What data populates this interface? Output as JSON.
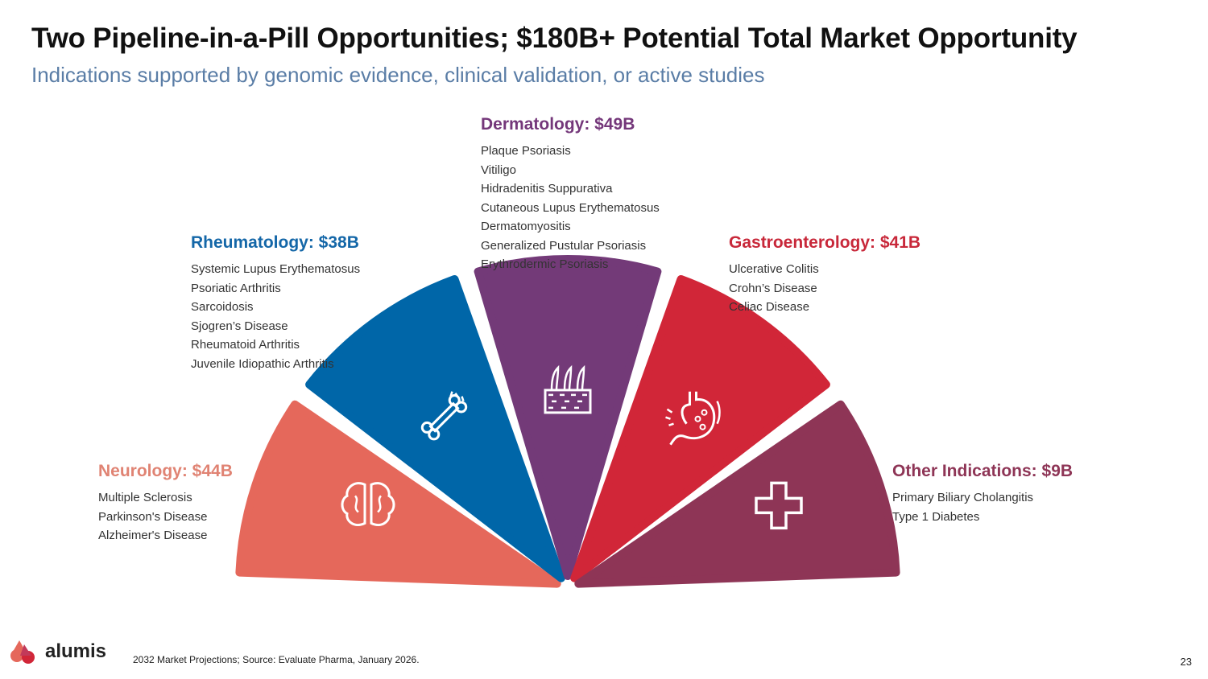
{
  "slide": {
    "title": "Two Pipeline-in-a-Pill Opportunities; $180B+ Potential Total Market Opportunity",
    "subtitle": "Indications supported by genomic evidence, clinical validation, or active studies",
    "footnote": "2032 Market Projections; Source: Evaluate Pharma, January 2026.",
    "page_number": "23",
    "logo_text": "alumis"
  },
  "chart_data": {
    "type": "pie",
    "title": "Two Pipeline-in-a-Pill Opportunities; $180B+ Potential Total Market Opportunity",
    "unit": "$B (2032 market projections)",
    "categories": [
      "Neurology",
      "Rheumatology",
      "Dermatology",
      "Gastroenterology",
      "Other Indications"
    ],
    "values": [
      44,
      38,
      49,
      41,
      9
    ],
    "segments": [
      {
        "name": "Neurology",
        "label": "Neurology: $44B",
        "value": 44,
        "color": "#e5685b",
        "icon": "brain-icon",
        "indications": [
          "Multiple Sclerosis",
          "Parkinson's Disease",
          "Alzheimer's Disease"
        ]
      },
      {
        "name": "Rheumatology",
        "label": "Rheumatology: $38B",
        "value": 38,
        "color": "#0066a8",
        "icon": "bone-icon",
        "indications": [
          "Systemic Lupus Erythematosus",
          "Psoriatic Arthritis",
          "Sarcoidosis",
          "Sjogren’s Disease",
          "Rheumatoid Arthritis",
          "Juvenile Idiopathic Arthritis"
        ]
      },
      {
        "name": "Dermatology",
        "label": "Dermatology: $49B",
        "value": 49,
        "color": "#733a78",
        "icon": "skin-icon",
        "indications": [
          "Plaque Psoriasis",
          "Vitiligo",
          "Hidradenitis Suppurativa",
          "Cutaneous Lupus Erythematosus",
          "Dermatomyositis",
          "Generalized Pustular Psoriasis",
          "Erythrodermic Psoriasis"
        ]
      },
      {
        "name": "Gastroenterology",
        "label": "Gastroenterology: $41B",
        "value": 41,
        "color": "#d12638",
        "icon": "stomach-icon",
        "indications": [
          "Ulcerative Colitis",
          "Crohn’s Disease",
          "Celiac Disease"
        ]
      },
      {
        "name": "Other Indications",
        "label": "Other Indications: $9B",
        "value": 9,
        "color": "#8e3556",
        "icon": "medical-cross-icon",
        "indications": [
          "Primary Biliary Cholangitis",
          "Type 1 Diabetes"
        ]
      }
    ],
    "label_colors": {
      "Neurology": "#e08373",
      "Rheumatology": "#1467a8",
      "Dermatology": "#74377a",
      "Gastroenterology": "#c8283a",
      "Other Indications": "#8e3556"
    },
    "note": "Half-doughnut with equal-angle wedges; values shown in labels"
  }
}
